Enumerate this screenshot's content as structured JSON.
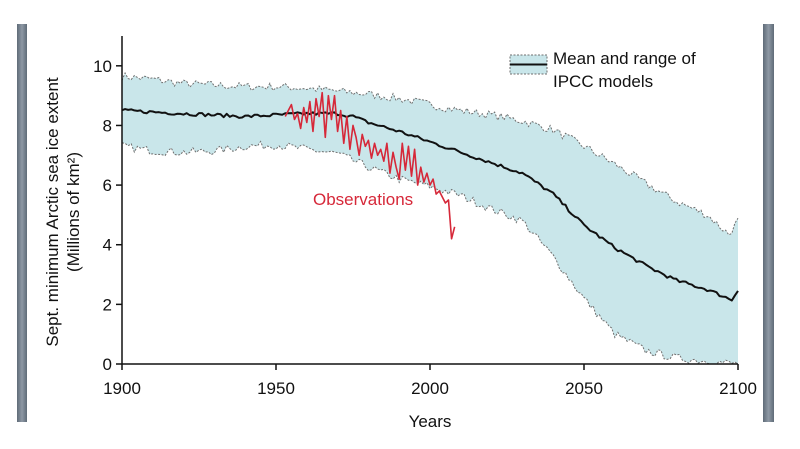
{
  "chart_data": {
    "type": "line",
    "title": "",
    "xlabel": "Years",
    "ylabel_line1": "Sept. minimum Arctic sea ice extent",
    "ylabel_line2": "(Millions of km²)",
    "xlim": [
      1900,
      2100
    ],
    "ylim": [
      0,
      11
    ],
    "x_ticks": [
      1900,
      1950,
      2000,
      2050,
      2100
    ],
    "y_ticks": [
      0,
      2,
      4,
      6,
      8,
      10
    ],
    "grid": false,
    "legend": {
      "placement": "top-right",
      "line1": "Mean and range of",
      "line2": "IPCC models"
    },
    "annotation": "Observations",
    "colors": {
      "band_fill": "#c9e6ea",
      "band_edge": "#6f6f6f",
      "mean_line": "#111111",
      "observations": "#d62839"
    },
    "series": [
      {
        "label_key": "legend",
        "role": "model_mean",
        "x": [
          1900,
          1910,
          1920,
          1930,
          1940,
          1950,
          1960,
          1970,
          1975,
          1980,
          1990,
          2000,
          2010,
          2020,
          2030,
          2040,
          2050,
          2060,
          2070,
          2080,
          2090,
          2098,
          2100
        ],
        "values": [
          8.5,
          8.45,
          8.4,
          8.35,
          8.3,
          8.35,
          8.4,
          8.4,
          8.3,
          8.1,
          7.8,
          7.45,
          7.1,
          6.75,
          6.4,
          5.7,
          4.65,
          3.9,
          3.3,
          2.8,
          2.5,
          2.15,
          2.5
        ]
      },
      {
        "role": "model_range_upper",
        "x": [
          1900,
          1910,
          1920,
          1930,
          1940,
          1950,
          1960,
          1970,
          1980,
          1990,
          2000,
          2010,
          2020,
          2030,
          2040,
          2050,
          2060,
          2070,
          2080,
          2090,
          2097,
          2100
        ],
        "values": [
          9.65,
          9.55,
          9.4,
          9.35,
          9.3,
          9.3,
          9.25,
          9.15,
          9.05,
          8.9,
          8.7,
          8.5,
          8.35,
          8.15,
          7.85,
          7.3,
          6.7,
          6.05,
          5.45,
          5.0,
          4.35,
          4.8
        ]
      },
      {
        "role": "model_range_lower",
        "x": [
          1900,
          1910,
          1920,
          1930,
          1940,
          1950,
          1960,
          1970,
          1980,
          1990,
          2000,
          2010,
          2020,
          2030,
          2040,
          2050,
          2060,
          2070,
          2080,
          2090,
          2100
        ],
        "values": [
          7.3,
          7.15,
          7.1,
          7.15,
          7.3,
          7.35,
          7.2,
          7.05,
          6.6,
          6.2,
          5.95,
          5.65,
          5.2,
          4.8,
          3.6,
          2.2,
          1.0,
          0.45,
          0.2,
          0.1,
          0.0
        ]
      },
      {
        "label_key": "annotation",
        "role": "observations",
        "x": [
          1953,
          1954,
          1955,
          1956,
          1957,
          1958,
          1959,
          1960,
          1961,
          1962,
          1963,
          1964,
          1965,
          1966,
          1967,
          1968,
          1969,
          1970,
          1971,
          1972,
          1973,
          1974,
          1975,
          1976,
          1977,
          1978,
          1979,
          1980,
          1981,
          1982,
          1983,
          1984,
          1985,
          1986,
          1987,
          1988,
          1989,
          1990,
          1991,
          1992,
          1993,
          1994,
          1995,
          1996,
          1997,
          1998,
          1999,
          2000,
          2001,
          2002,
          2003,
          2004,
          2005,
          2006,
          2007,
          2008
        ],
        "values": [
          8.3,
          8.5,
          8.7,
          8.2,
          8.4,
          7.9,
          8.6,
          8.1,
          8.8,
          7.8,
          8.9,
          8.3,
          9.1,
          7.6,
          9.0,
          8.2,
          9.0,
          7.8,
          8.5,
          7.4,
          8.3,
          7.2,
          8.0,
          7.6,
          7.0,
          7.7,
          7.3,
          7.5,
          6.9,
          7.4,
          7.0,
          7.2,
          6.8,
          7.4,
          6.4,
          7.1,
          6.6,
          6.2,
          7.4,
          6.5,
          7.3,
          6.3,
          7.2,
          6.0,
          6.6,
          6.1,
          6.4,
          6.0,
          6.2,
          5.7,
          5.8,
          5.6,
          5.4,
          5.5,
          4.2,
          4.6
        ]
      }
    ]
  }
}
